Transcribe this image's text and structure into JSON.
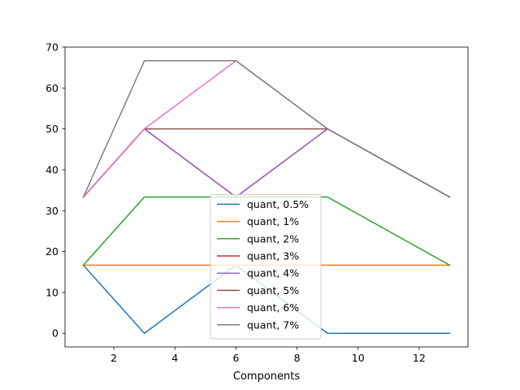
{
  "chart_data": {
    "type": "line",
    "title": "",
    "xlabel": "Components",
    "ylabel": "",
    "x": [
      1,
      3,
      6,
      9,
      13
    ],
    "xlim": [
      0.4,
      13.6
    ],
    "ylim": [
      -3.33,
      70
    ],
    "xticks": [
      2,
      4,
      6,
      8,
      10,
      12
    ],
    "yticks": [
      0,
      10,
      20,
      30,
      40,
      50,
      60,
      70
    ],
    "grid": false,
    "legend_position": "lower center",
    "series": [
      {
        "name": "quant, 0.5%",
        "color": "#1f77b4",
        "values": [
          16.67,
          0,
          16.67,
          0,
          0
        ]
      },
      {
        "name": "quant, 1%",
        "color": "#ff7f0e",
        "values": [
          16.67,
          16.67,
          16.67,
          16.67,
          16.67
        ]
      },
      {
        "name": "quant, 2%",
        "color": "#2ca02c",
        "values": [
          16.67,
          33.33,
          33.33,
          33.33,
          16.67
        ]
      },
      {
        "name": "quant, 3%",
        "color": "#d62728",
        "values": [
          33.33,
          50,
          33.33,
          50,
          33.33
        ]
      },
      {
        "name": "quant, 4%",
        "color": "#9467bd",
        "values": [
          33.33,
          50,
          33.33,
          50,
          33.33
        ]
      },
      {
        "name": "quant, 5%",
        "color": "#8c564b",
        "values": [
          33.33,
          50,
          50,
          50,
          33.33
        ]
      },
      {
        "name": "quant, 6%",
        "color": "#e377c2",
        "values": [
          33.33,
          50,
          66.67,
          50,
          33.33
        ]
      },
      {
        "name": "quant, 7%",
        "color": "#7f7f7f",
        "values": [
          33.33,
          66.67,
          66.67,
          50,
          33.33
        ]
      }
    ]
  }
}
